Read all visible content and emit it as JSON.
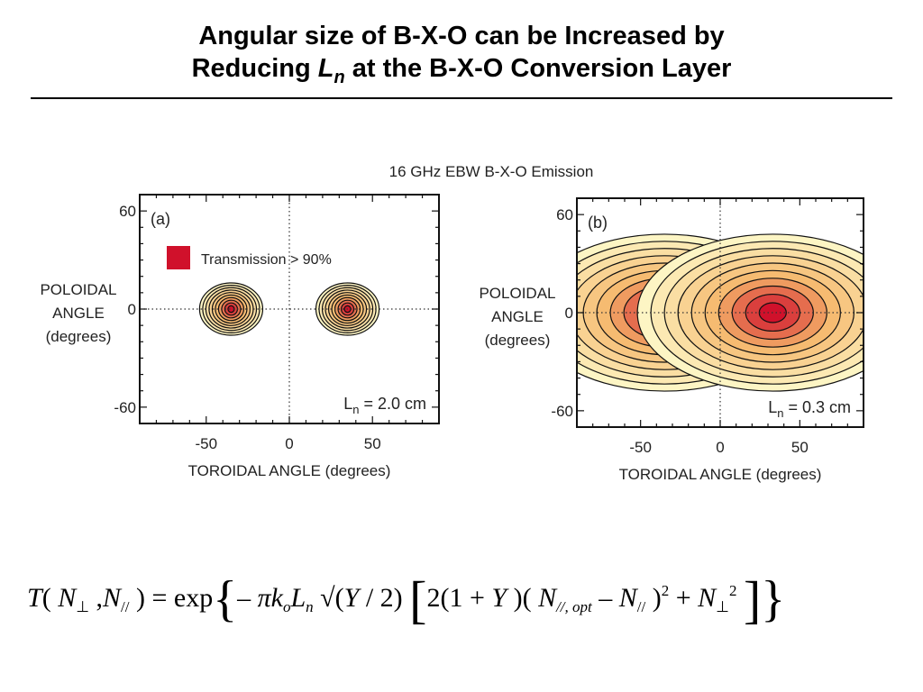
{
  "slide": {
    "title_line1": "Angular size of B-X-O can be Increased by",
    "title_line2_pre": "Reducing ",
    "title_line2_var": "L",
    "title_line2_sub": "n",
    "title_line2_post": " at the B-X-O Conversion Layer"
  },
  "figure": {
    "title": "16 GHz EBW B-X-O Emission",
    "ylabel_lines": [
      "POLOIDAL",
      "ANGLE",
      "(degrees)"
    ],
    "xlabel": "TOROIDAL ANGLE (degrees)"
  },
  "chart_data": [
    {
      "type": "contour",
      "panel_label": "(a)",
      "legend": {
        "label": "Transmission > 90%",
        "color": "#d0112b"
      },
      "annotation": {
        "prefix": "L",
        "sub": "n",
        "suffix": " = 2.0 cm"
      },
      "xlabel": "TOROIDAL ANGLE (degrees)",
      "ylabel": "POLOIDAL ANGLE (degrees)",
      "xlim": [
        -90,
        90
      ],
      "ylim": [
        -70,
        70
      ],
      "xticks": [
        -50,
        0,
        50
      ],
      "yticks": [
        60,
        0,
        -60
      ],
      "peaks": [
        {
          "x": -35,
          "y": 0,
          "rx": 19,
          "ry": 16,
          "levels": 10
        },
        {
          "x": 35,
          "y": 0,
          "rx": 19,
          "ry": 16,
          "levels": 10
        }
      ]
    },
    {
      "type": "contour",
      "panel_label": "(b)",
      "annotation": {
        "prefix": "L",
        "sub": "n",
        "suffix": " = 0.3 cm"
      },
      "xlabel": "TOROIDAL ANGLE (degrees)",
      "ylabel": "POLOIDAL ANGLE (degrees)",
      "xlim": [
        -90,
        90
      ],
      "ylim": [
        -70,
        70
      ],
      "xticks": [
        -50,
        0,
        50
      ],
      "yticks": [
        60,
        0,
        -60
      ],
      "peaks": [
        {
          "x": -35,
          "y": 0,
          "rx": 85,
          "ry": 48,
          "levels": 10
        },
        {
          "x": 33,
          "y": 0,
          "rx": 85,
          "ry": 48,
          "levels": 10
        }
      ]
    }
  ],
  "colors": {
    "contour_fill_outer": "#fdf5c4",
    "contour_fill_mid": "#f5b66a",
    "contour_fill_inner": "#d0112b",
    "contour_line": "#111111"
  }
}
